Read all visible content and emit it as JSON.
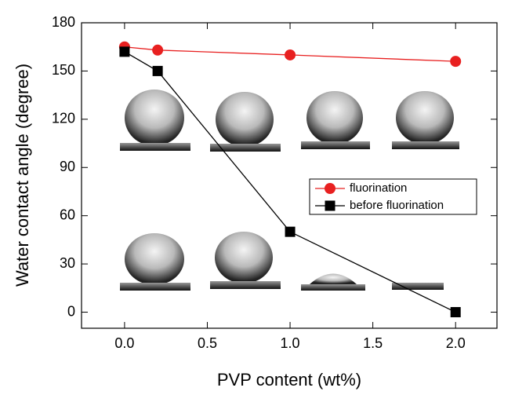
{
  "chart_data": {
    "type": "line",
    "x_label": "PVP content (wt%)",
    "y_label": "Water contact angle (degree)",
    "xlim": [
      -0.26,
      2.25
    ],
    "ylim": [
      -10,
      180
    ],
    "xticks": [
      {
        "value": 0,
        "label": "0.0"
      },
      {
        "value": 0.5,
        "label": "0.5"
      },
      {
        "value": 1,
        "label": "1.0"
      },
      {
        "value": 1.5,
        "label": "1.5"
      },
      {
        "value": 2,
        "label": "2.0"
      }
    ],
    "yticks": [
      0,
      30,
      60,
      90,
      120,
      150,
      180
    ],
    "series": [
      {
        "name": "fluorination",
        "color": "#e82020",
        "marker": "circle",
        "x": [
          0,
          0.2,
          1,
          2
        ],
        "values": [
          165,
          163,
          160,
          156
        ]
      },
      {
        "name": "before fluorination",
        "color": "#000000",
        "marker": "square",
        "x": [
          0,
          0.2,
          1,
          2
        ],
        "values": [
          162,
          150,
          50,
          0
        ]
      }
    ]
  }
}
